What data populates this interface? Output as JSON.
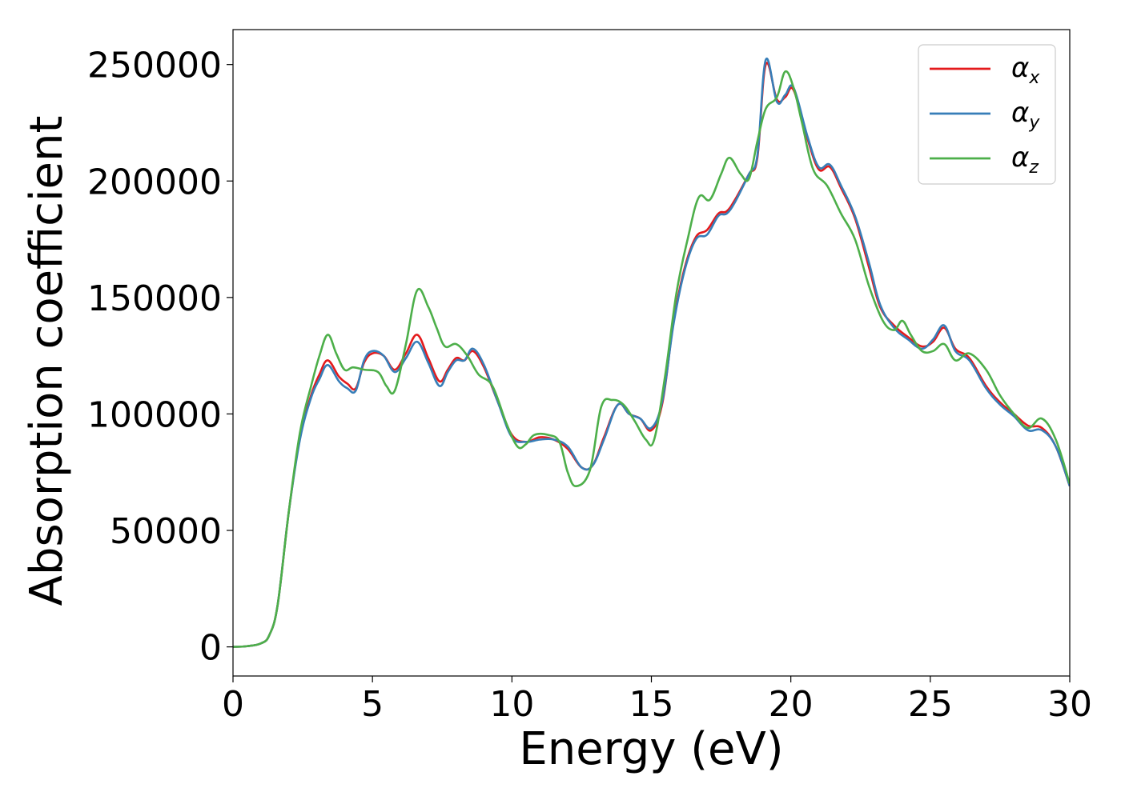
{
  "chart_data": {
    "type": "line",
    "title": "",
    "xlabel": "Energy (eV)",
    "ylabel": "Absorption coefficient",
    "xlim": [
      0,
      30
    ],
    "ylim": [
      -12500,
      265000
    ],
    "x_ticks": [
      0,
      5,
      10,
      15,
      20,
      25,
      30
    ],
    "y_ticks": [
      0,
      50000,
      100000,
      150000,
      200000,
      250000
    ],
    "grid": false,
    "legend_position": "top-right",
    "series": [
      {
        "name": "α",
        "subscript": "x",
        "color": "#e41a1c",
        "points": [
          [
            0,
            0
          ],
          [
            0.5,
            300
          ],
          [
            1.0,
            1500
          ],
          [
            1.3,
            5000
          ],
          [
            1.6,
            18000
          ],
          [
            2.0,
            58000
          ],
          [
            2.4,
            90000
          ],
          [
            2.8,
            108000
          ],
          [
            3.1,
            117000
          ],
          [
            3.4,
            123000
          ],
          [
            3.8,
            116000
          ],
          [
            4.1,
            113000
          ],
          [
            4.4,
            111000
          ],
          [
            4.7,
            122000
          ],
          [
            5.0,
            126000
          ],
          [
            5.4,
            125000
          ],
          [
            5.8,
            119000
          ],
          [
            6.2,
            126000
          ],
          [
            6.6,
            134000
          ],
          [
            7.0,
            124000
          ],
          [
            7.4,
            114000
          ],
          [
            7.7,
            119000
          ],
          [
            8.0,
            124000
          ],
          [
            8.3,
            123000
          ],
          [
            8.6,
            127000
          ],
          [
            9.0,
            120000
          ],
          [
            9.5,
            105000
          ],
          [
            10.0,
            91000
          ],
          [
            10.5,
            88000
          ],
          [
            11.0,
            90000
          ],
          [
            11.5,
            89000
          ],
          [
            12.0,
            85000
          ],
          [
            12.5,
            77000
          ],
          [
            12.9,
            78000
          ],
          [
            13.3,
            90000
          ],
          [
            13.8,
            104000
          ],
          [
            14.2,
            100000
          ],
          [
            14.6,
            98000
          ],
          [
            15.0,
            93000
          ],
          [
            15.4,
            105000
          ],
          [
            15.8,
            140000
          ],
          [
            16.2,
            163000
          ],
          [
            16.6,
            176000
          ],
          [
            17.0,
            179000
          ],
          [
            17.4,
            186000
          ],
          [
            17.7,
            187000
          ],
          [
            18.0,
            192000
          ],
          [
            18.5,
            203000
          ],
          [
            18.8,
            210000
          ],
          [
            19.1,
            250000
          ],
          [
            19.5,
            235000
          ],
          [
            19.8,
            236000
          ],
          [
            20.1,
            239000
          ],
          [
            20.6,
            218000
          ],
          [
            21.0,
            205000
          ],
          [
            21.4,
            206000
          ],
          [
            21.8,
            197000
          ],
          [
            22.3,
            184000
          ],
          [
            22.8,
            163000
          ],
          [
            23.2,
            146000
          ],
          [
            23.7,
            138000
          ],
          [
            24.2,
            133000
          ],
          [
            24.7,
            129000
          ],
          [
            25.1,
            131000
          ],
          [
            25.5,
            137000
          ],
          [
            25.9,
            128000
          ],
          [
            26.4,
            124000
          ],
          [
            27.0,
            112000
          ],
          [
            27.5,
            105000
          ],
          [
            28.0,
            100000
          ],
          [
            28.5,
            95000
          ],
          [
            29.0,
            94000
          ],
          [
            29.5,
            86000
          ],
          [
            30.0,
            69000
          ]
        ]
      },
      {
        "name": "α",
        "subscript": "y",
        "color": "#377eb8",
        "points": [
          [
            0,
            0
          ],
          [
            0.5,
            300
          ],
          [
            1.0,
            1500
          ],
          [
            1.3,
            5000
          ],
          [
            1.6,
            18000
          ],
          [
            2.0,
            58000
          ],
          [
            2.4,
            89000
          ],
          [
            2.8,
            107000
          ],
          [
            3.1,
            115000
          ],
          [
            3.4,
            121000
          ],
          [
            3.8,
            114000
          ],
          [
            4.1,
            111000
          ],
          [
            4.4,
            110000
          ],
          [
            4.7,
            123000
          ],
          [
            5.0,
            127000
          ],
          [
            5.4,
            125000
          ],
          [
            5.8,
            118000
          ],
          [
            6.2,
            124000
          ],
          [
            6.6,
            131000
          ],
          [
            7.0,
            122000
          ],
          [
            7.4,
            112000
          ],
          [
            7.7,
            118000
          ],
          [
            8.0,
            123000
          ],
          [
            8.3,
            123000
          ],
          [
            8.6,
            128000
          ],
          [
            9.0,
            121000
          ],
          [
            9.5,
            105000
          ],
          [
            10.0,
            90000
          ],
          [
            10.5,
            88000
          ],
          [
            11.0,
            89000
          ],
          [
            11.5,
            89000
          ],
          [
            12.0,
            86000
          ],
          [
            12.5,
            77000
          ],
          [
            12.9,
            78000
          ],
          [
            13.3,
            89000
          ],
          [
            13.8,
            104000
          ],
          [
            14.2,
            100000
          ],
          [
            14.6,
            98000
          ],
          [
            15.0,
            94000
          ],
          [
            15.4,
            106000
          ],
          [
            15.8,
            139000
          ],
          [
            16.2,
            162000
          ],
          [
            16.6,
            175000
          ],
          [
            17.0,
            177000
          ],
          [
            17.4,
            185000
          ],
          [
            17.7,
            186000
          ],
          [
            18.0,
            191000
          ],
          [
            18.5,
            203000
          ],
          [
            18.8,
            211000
          ],
          [
            19.1,
            252000
          ],
          [
            19.5,
            234000
          ],
          [
            19.8,
            237000
          ],
          [
            20.1,
            240000
          ],
          [
            20.6,
            219000
          ],
          [
            21.0,
            206000
          ],
          [
            21.4,
            207000
          ],
          [
            21.8,
            198000
          ],
          [
            22.3,
            185000
          ],
          [
            22.8,
            165000
          ],
          [
            23.2,
            147000
          ],
          [
            23.7,
            137000
          ],
          [
            24.2,
            132000
          ],
          [
            24.7,
            128000
          ],
          [
            25.1,
            132000
          ],
          [
            25.5,
            138000
          ],
          [
            25.9,
            127000
          ],
          [
            26.4,
            123000
          ],
          [
            27.0,
            111000
          ],
          [
            27.5,
            104000
          ],
          [
            28.0,
            99000
          ],
          [
            28.5,
            93000
          ],
          [
            29.0,
            93000
          ],
          [
            29.5,
            86000
          ],
          [
            30.0,
            69000
          ]
        ]
      },
      {
        "name": "α",
        "subscript": "z",
        "color": "#4daf4a",
        "points": [
          [
            0,
            0
          ],
          [
            0.5,
            300
          ],
          [
            1.0,
            1500
          ],
          [
            1.3,
            5000
          ],
          [
            1.6,
            18000
          ],
          [
            2.0,
            58000
          ],
          [
            2.4,
            92000
          ],
          [
            2.8,
            112000
          ],
          [
            3.1,
            125000
          ],
          [
            3.4,
            134000
          ],
          [
            3.7,
            126000
          ],
          [
            4.0,
            119000
          ],
          [
            4.3,
            120000
          ],
          [
            4.7,
            119000
          ],
          [
            5.2,
            118000
          ],
          [
            5.5,
            112000
          ],
          [
            5.8,
            110000
          ],
          [
            6.2,
            130000
          ],
          [
            6.6,
            153000
          ],
          [
            7.0,
            146000
          ],
          [
            7.3,
            137000
          ],
          [
            7.6,
            129000
          ],
          [
            8.0,
            130000
          ],
          [
            8.4,
            125000
          ],
          [
            8.8,
            117000
          ],
          [
            9.3,
            112000
          ],
          [
            9.8,
            96000
          ],
          [
            10.2,
            86000
          ],
          [
            10.5,
            87000
          ],
          [
            10.8,
            91000
          ],
          [
            11.3,
            91000
          ],
          [
            11.7,
            88000
          ],
          [
            12.0,
            75000
          ],
          [
            12.3,
            69000
          ],
          [
            12.8,
            76000
          ],
          [
            13.2,
            103000
          ],
          [
            13.6,
            106000
          ],
          [
            14.0,
            104000
          ],
          [
            14.4,
            97000
          ],
          [
            14.8,
            89000
          ],
          [
            15.1,
            89000
          ],
          [
            15.5,
            117000
          ],
          [
            15.9,
            152000
          ],
          [
            16.3,
            175000
          ],
          [
            16.7,
            193000
          ],
          [
            17.1,
            192000
          ],
          [
            17.5,
            203000
          ],
          [
            17.8,
            210000
          ],
          [
            18.2,
            203000
          ],
          [
            18.5,
            201000
          ],
          [
            18.8,
            217000
          ],
          [
            19.1,
            231000
          ],
          [
            19.5,
            236000
          ],
          [
            19.8,
            247000
          ],
          [
            20.1,
            240000
          ],
          [
            20.4,
            225000
          ],
          [
            20.8,
            205000
          ],
          [
            21.3,
            198000
          ],
          [
            21.8,
            186000
          ],
          [
            22.3,
            175000
          ],
          [
            22.8,
            155000
          ],
          [
            23.3,
            140000
          ],
          [
            23.7,
            136000
          ],
          [
            24.0,
            140000
          ],
          [
            24.3,
            134000
          ],
          [
            24.7,
            127000
          ],
          [
            25.1,
            127000
          ],
          [
            25.5,
            130000
          ],
          [
            25.9,
            123000
          ],
          [
            26.4,
            126000
          ],
          [
            27.0,
            119000
          ],
          [
            27.5,
            108000
          ],
          [
            28.0,
            100000
          ],
          [
            28.5,
            94000
          ],
          [
            29.0,
            98000
          ],
          [
            29.5,
            89000
          ],
          [
            30.0,
            70000
          ]
        ]
      }
    ]
  }
}
